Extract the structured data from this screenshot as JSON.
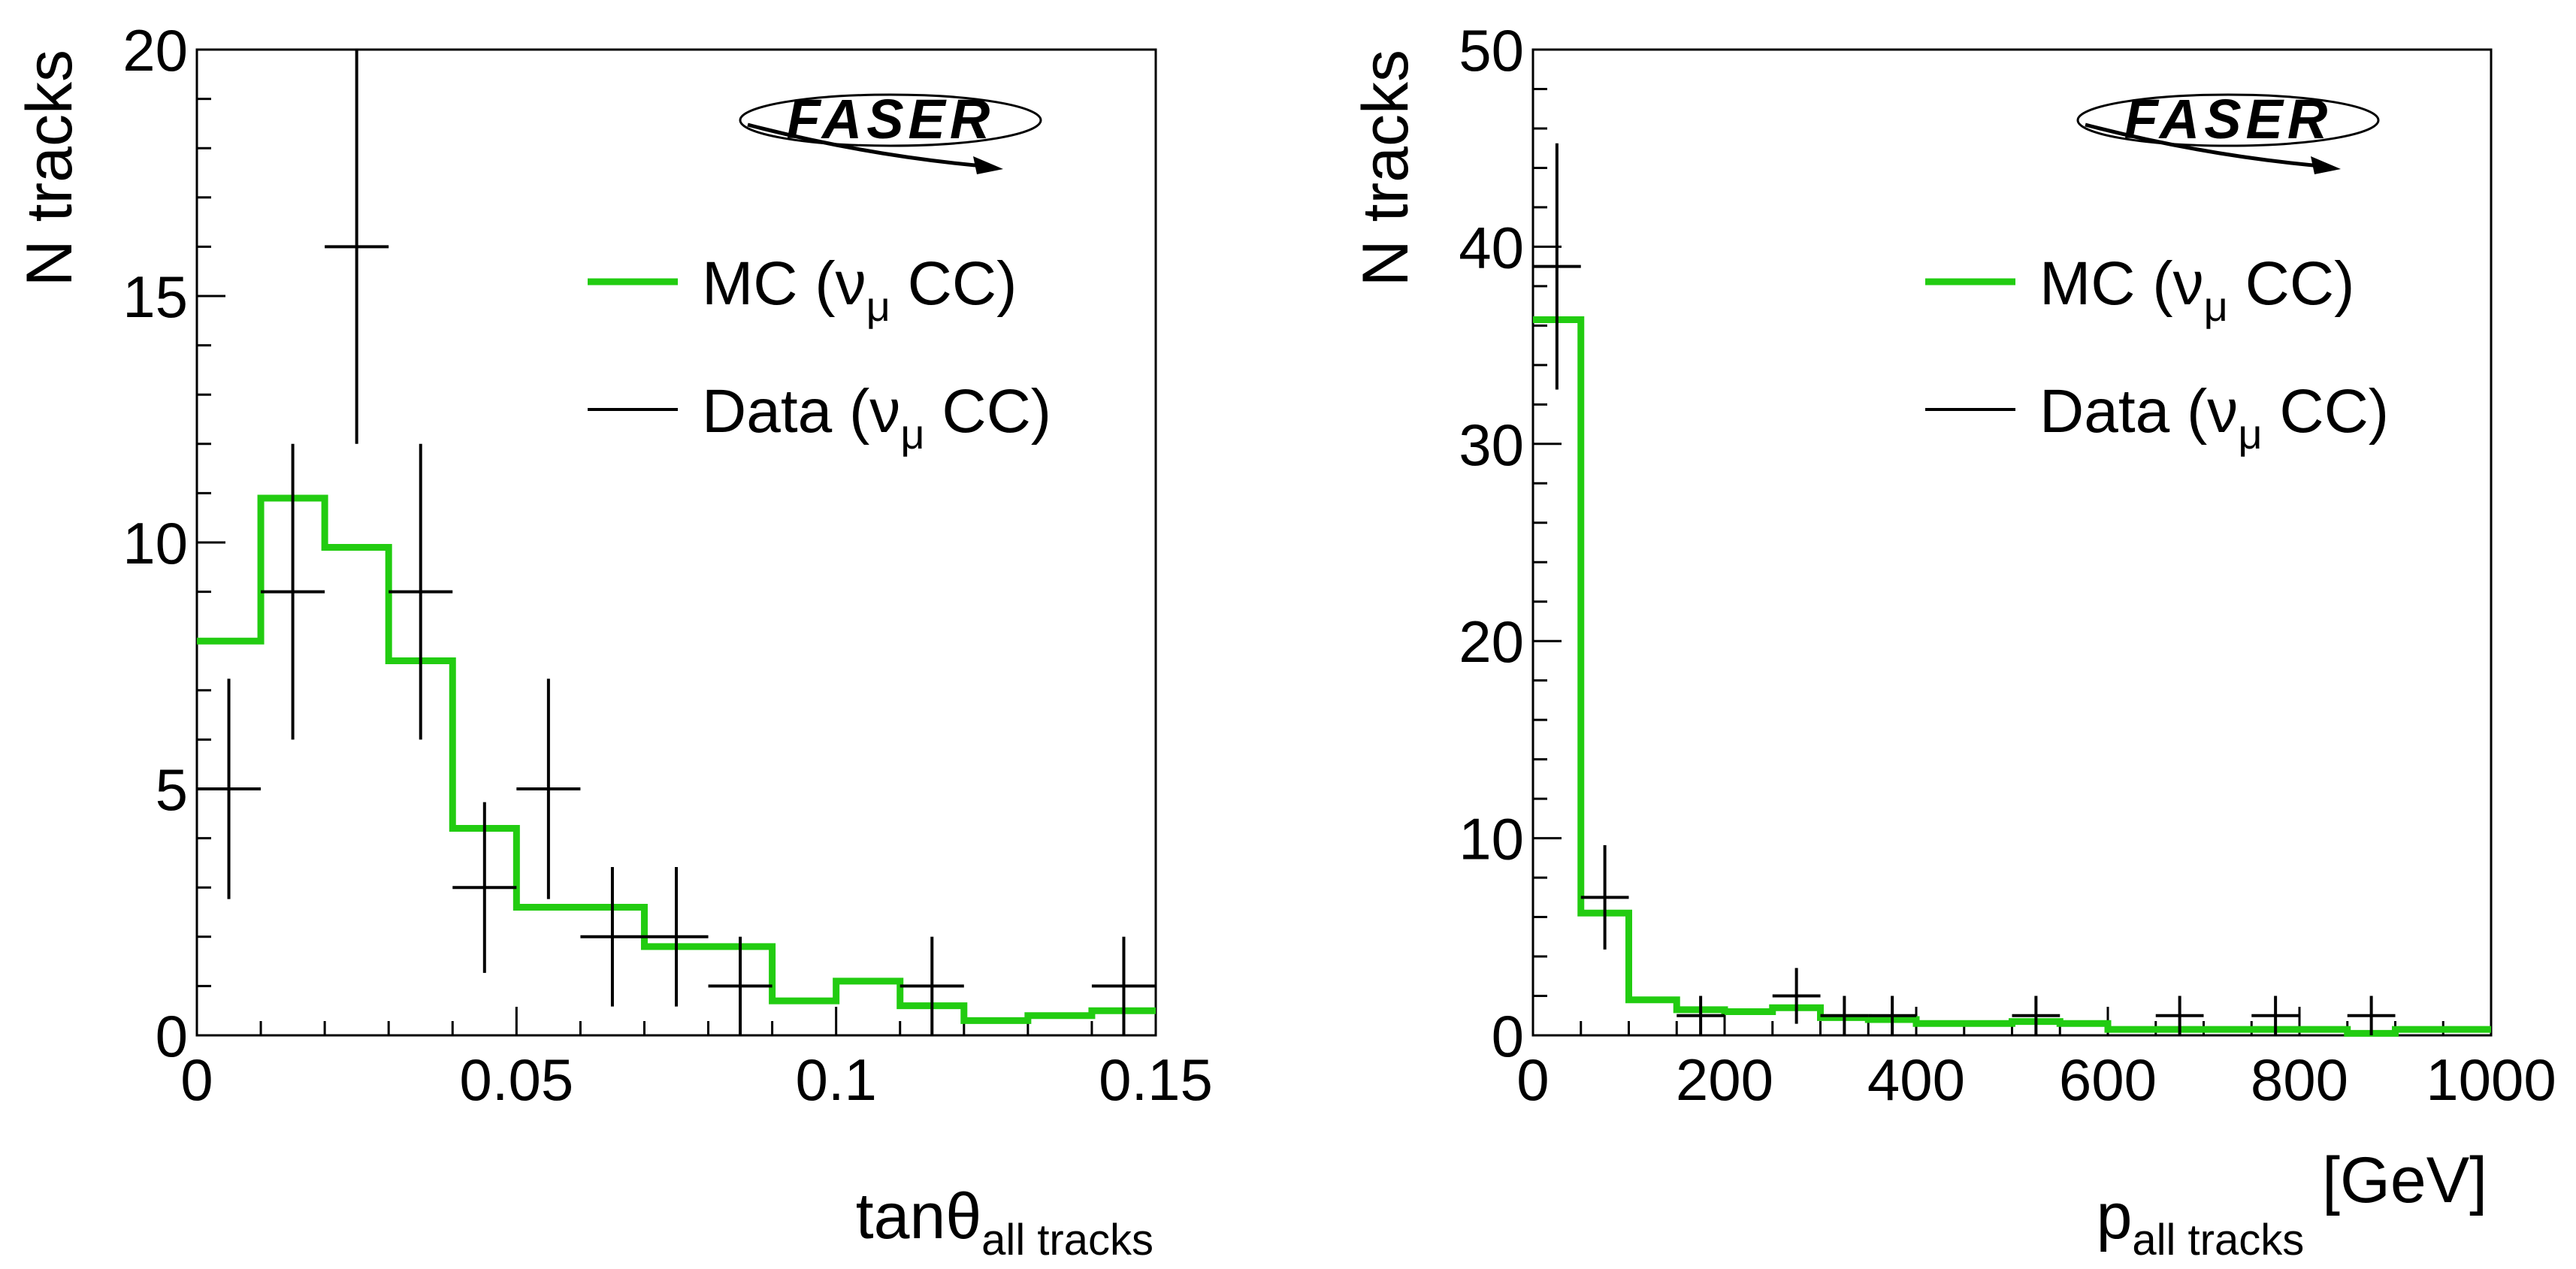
{
  "colors": {
    "mc": "#22cc11",
    "data": "#000000",
    "frame": "#000000"
  },
  "logo": {
    "text": "FASER"
  },
  "chart_data": [
    {
      "type": "histogram",
      "ylabel": "N tracks",
      "xlabel": {
        "main": "tanθ",
        "sub": "all tracks",
        "unit": ""
      },
      "xlim": [
        0,
        0.15
      ],
      "ylim": [
        0,
        20
      ],
      "xticks": [
        {
          "value": 0,
          "label": "0"
        },
        {
          "value": 0.05,
          "label": "0.05"
        },
        {
          "value": 0.1,
          "label": "0.1"
        },
        {
          "value": 0.15,
          "label": "0.15"
        }
      ],
      "yticks": [
        {
          "value": 0,
          "label": "0"
        },
        {
          "value": 5,
          "label": "5"
        },
        {
          "value": 10,
          "label": "10"
        },
        {
          "value": 15,
          "label": "15"
        },
        {
          "value": 20,
          "label": "20"
        }
      ],
      "x_minor_step": 0.01,
      "y_minor_step": 1,
      "legend_position": "top-right",
      "legend": [
        {
          "key": "mc",
          "pre": "MC (ν",
          "sub": "μ",
          "post": " CC)"
        },
        {
          "key": "data",
          "pre": "Data (ν",
          "sub": "μ",
          "post": " CC)"
        }
      ],
      "series": [
        {
          "key": "mc",
          "style": "step",
          "bin_edges": [
            0,
            0.01,
            0.02,
            0.03,
            0.04,
            0.05,
            0.06,
            0.07,
            0.08,
            0.09,
            0.1,
            0.11,
            0.12,
            0.13,
            0.14,
            0.15
          ],
          "values": [
            8.0,
            10.9,
            9.9,
            7.6,
            4.2,
            2.6,
            2.6,
            1.8,
            1.8,
            0.7,
            1.1,
            0.6,
            0.3,
            0.4,
            0.5
          ]
        },
        {
          "key": "data",
          "style": "errorbar",
          "bin_edges": [
            0,
            0.01,
            0.02,
            0.03,
            0.04,
            0.05,
            0.06,
            0.07,
            0.08,
            0.09,
            0.1,
            0.11,
            0.12,
            0.13,
            0.14,
            0.15
          ],
          "values": [
            5,
            9,
            16,
            9,
            3,
            5,
            2,
            2,
            1,
            0,
            0,
            1,
            0,
            0,
            1
          ]
        }
      ]
    },
    {
      "type": "histogram",
      "ylabel": "N tracks",
      "xlabel": {
        "main": "p",
        "sub": "all tracks",
        "unit": " [GeV]"
      },
      "xlim": [
        0,
        1000
      ],
      "ylim": [
        0,
        50
      ],
      "xticks": [
        {
          "value": 0,
          "label": "0"
        },
        {
          "value": 200,
          "label": "200"
        },
        {
          "value": 400,
          "label": "400"
        },
        {
          "value": 600,
          "label": "600"
        },
        {
          "value": 800,
          "label": "800"
        },
        {
          "value": 1000,
          "label": "1000"
        }
      ],
      "yticks": [
        {
          "value": 0,
          "label": "0"
        },
        {
          "value": 10,
          "label": "10"
        },
        {
          "value": 20,
          "label": "20"
        },
        {
          "value": 30,
          "label": "30"
        },
        {
          "value": 40,
          "label": "40"
        },
        {
          "value": 50,
          "label": "50"
        }
      ],
      "x_minor_step": 50,
      "y_minor_step": 2,
      "legend_position": "top-right",
      "legend": [
        {
          "key": "mc",
          "pre": "MC (ν",
          "sub": "μ",
          "post": " CC)"
        },
        {
          "key": "data",
          "pre": "Data (ν",
          "sub": "μ",
          "post": " CC)"
        }
      ],
      "series": [
        {
          "key": "mc",
          "style": "step",
          "bin_edges": [
            0,
            50,
            100,
            150,
            200,
            250,
            300,
            350,
            400,
            450,
            500,
            550,
            600,
            650,
            700,
            750,
            800,
            850,
            900,
            950,
            1000
          ],
          "values": [
            36.3,
            6.2,
            1.8,
            1.3,
            1.2,
            1.4,
            0.9,
            0.8,
            0.6,
            0.6,
            0.7,
            0.6,
            0.3,
            0.3,
            0.3,
            0.3,
            0.3,
            0.1,
            0.3,
            0.3
          ]
        },
        {
          "key": "data",
          "style": "errorbar",
          "bin_edges": [
            0,
            50,
            100,
            150,
            200,
            250,
            300,
            350,
            400,
            450,
            500,
            550,
            600,
            650,
            700,
            750,
            800,
            850,
            900,
            950,
            1000
          ],
          "values": [
            39,
            7,
            0,
            1,
            0,
            2,
            1,
            1,
            0,
            0,
            1,
            0,
            0,
            1,
            0,
            1,
            0,
            1,
            0,
            0
          ]
        }
      ]
    }
  ]
}
